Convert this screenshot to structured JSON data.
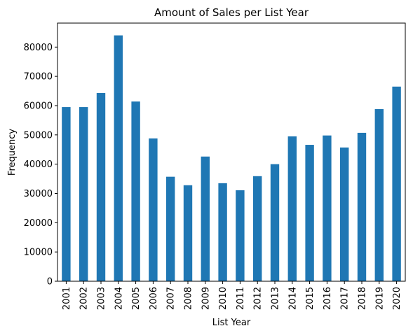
{
  "chart_data": {
    "type": "bar",
    "title": "Amount of Sales per List Year",
    "xlabel": "List Year",
    "ylabel": "Frequency",
    "categories": [
      "2001",
      "2002",
      "2003",
      "2004",
      "2005",
      "2006",
      "2007",
      "2008",
      "2009",
      "2010",
      "2011",
      "2012",
      "2013",
      "2014",
      "2015",
      "2016",
      "2017",
      "2018",
      "2019",
      "2020"
    ],
    "values": [
      59500,
      59500,
      64300,
      84000,
      61400,
      48800,
      35700,
      32800,
      42600,
      33500,
      31100,
      35900,
      40000,
      49500,
      46600,
      49800,
      45700,
      50700,
      58800,
      66500
    ],
    "ylim": [
      0,
      88200
    ],
    "yticks": [
      0,
      10000,
      20000,
      30000,
      40000,
      50000,
      60000,
      70000,
      80000
    ],
    "bar_color": "#1f77b4",
    "grid": false,
    "legend": "none"
  }
}
